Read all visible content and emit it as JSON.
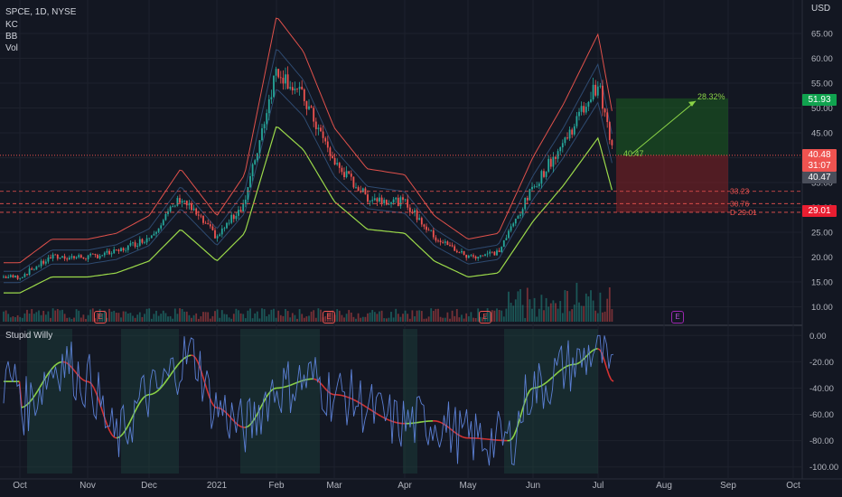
{
  "header": {
    "symbol": "SPCE, 1D, NYSE",
    "indicators": [
      "KC",
      "BB",
      "Vol"
    ],
    "currency": "USD"
  },
  "oscillator": {
    "name": "Stupid Willy"
  },
  "colors": {
    "background": "#131722",
    "grid": "#1e222d",
    "up": "#26a69a",
    "down": "#ef5350",
    "keltner": "#2e4a70",
    "bb_upper": "#e0514b",
    "bb_lower": "#9bd94a",
    "profit_zone": "#1b5e20",
    "loss_zone": "#7b1f24",
    "oscillator_fast": "#5b7fd3",
    "signal_green": "#8bd347",
    "signal_red": "#d43232"
  },
  "price_tags": [
    {
      "label": "51.93",
      "color": "#10a34f"
    },
    {
      "label": "40.48",
      "color": "#ef5350"
    },
    {
      "label": "31:07",
      "color": "#ef5350"
    },
    {
      "label": "40.47",
      "color": "#4a4e5a"
    },
    {
      "label": "29.01",
      "color": "#e91e31"
    }
  ],
  "earnings_markers": [
    {
      "label": "E",
      "color": "#ef5350"
    },
    {
      "label": "E",
      "color": "#ef5350"
    },
    {
      "label": "E",
      "color": "#ef5350"
    },
    {
      "label": "E",
      "color": "#9c27b0"
    }
  ],
  "chart_data": [
    {
      "type": "candlestick",
      "x_axis": [
        "Oct",
        "Nov",
        "Dec",
        "2021",
        "Feb",
        "Mar",
        "Apr",
        "May",
        "Jun",
        "Jul",
        "Aug",
        "Sep",
        "Oct"
      ],
      "y_ticks": [
        10,
        15,
        20,
        25,
        30,
        35,
        40,
        45,
        50,
        55,
        60,
        65
      ],
      "ylim": [
        7,
        71
      ],
      "grid": true,
      "price_path": [
        [
          "Oct",
          16
        ],
        [
          "Oct 15",
          20
        ],
        [
          "Nov",
          20
        ],
        [
          "Nov 15",
          21
        ],
        [
          "Dec",
          24
        ],
        [
          "Dec 15",
          32
        ],
        [
          "2021",
          24
        ],
        [
          "Jan 15",
          31
        ],
        [
          "Feb",
          58
        ],
        [
          "Feb 15",
          52
        ],
        [
          "Mar",
          39
        ],
        [
          "Mar 15",
          32
        ],
        [
          "Apr",
          31
        ],
        [
          "Apr 15",
          24
        ],
        [
          "May",
          20
        ],
        [
          "May 15",
          21
        ],
        [
          "Jun",
          34
        ],
        [
          "Jun 15",
          43
        ],
        [
          "Jul",
          55
        ],
        [
          "Jul 8",
          40.47
        ]
      ],
      "position": {
        "entry": 40.47,
        "target": 51.93,
        "stop": 29.01,
        "gain_label": "28.32%",
        "entry_label": "40.47",
        "levels": [
          {
            "label": "33.23",
            "value": 33.23
          },
          {
            "label": "30.76",
            "value": 30.76
          },
          {
            "label": "D 29.01",
            "value": 29.01
          }
        ]
      }
    },
    {
      "type": "line",
      "name": "Stupid Willy",
      "y_ticks": [
        0,
        -20,
        -40,
        -60,
        -80,
        -100
      ],
      "tick_labels": [
        "0.00",
        "-20.00",
        "-40.00",
        "-60.00",
        "-80.00",
        "-100.00"
      ],
      "ylim": [
        -105,
        5
      ],
      "slow_line": [
        [
          "Oct",
          -55
        ],
        [
          "Oct 20",
          -20
        ],
        [
          "Nov",
          -35
        ],
        [
          "Nov 15",
          -78
        ],
        [
          "Dec",
          -45
        ],
        [
          "Dec 20",
          -15
        ],
        [
          "2021",
          -55
        ],
        [
          "Jan 15",
          -70
        ],
        [
          "Feb",
          -40
        ],
        [
          "Feb 20",
          -33
        ],
        [
          "Mar",
          -45
        ],
        [
          "Apr",
          -67
        ],
        [
          "Apr 15",
          -65
        ],
        [
          "May",
          -78
        ],
        [
          "May 20",
          -80
        ],
        [
          "Jun",
          -40
        ],
        [
          "Jun 20",
          -22
        ],
        [
          "Jul",
          -10
        ],
        [
          "Jul 8",
          -35
        ]
      ]
    }
  ]
}
